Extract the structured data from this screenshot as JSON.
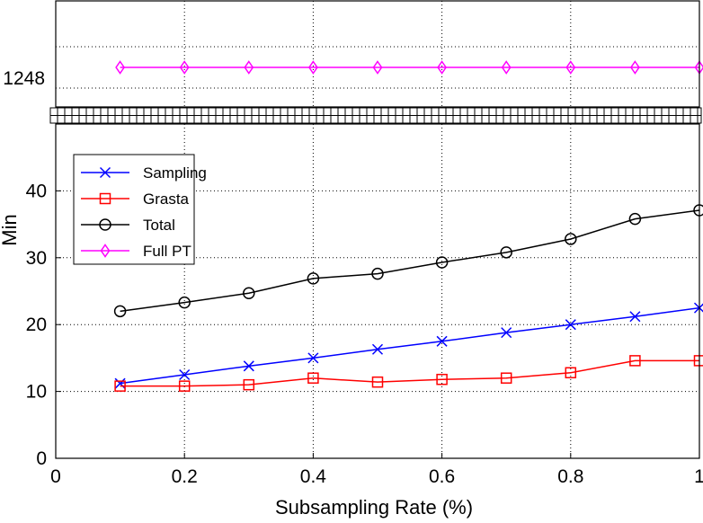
{
  "chart_data": {
    "type": "line",
    "xlabel": "Subsampling Rate (%)",
    "ylabel": "Min",
    "xlim": [
      0,
      1
    ],
    "ylim": [
      0,
      50
    ],
    "grid": true,
    "broken_axis": true,
    "break_band_label": "axis break",
    "x_ticks": [
      0,
      0.2,
      0.4,
      0.6,
      0.8,
      1
    ],
    "x_tick_labels": [
      "0",
      "0.2",
      "0.4",
      "0.6",
      "0.8",
      "1"
    ],
    "y_ticks": [
      0,
      10,
      20,
      30,
      40
    ],
    "y_tick_labels": [
      "0",
      "10",
      "20",
      "30",
      "40"
    ],
    "upper_panel": {
      "y_ticks": [
        1248
      ],
      "y_tick_labels": [
        "1248"
      ]
    },
    "x": [
      0.1,
      0.2,
      0.3,
      0.4,
      0.5,
      0.6,
      0.7,
      0.8,
      0.9,
      1.0
    ],
    "series": [
      {
        "name": "Sampling",
        "color": "#0000ff",
        "marker": "x",
        "panel": "lower",
        "values": [
          11.2,
          12.5,
          13.8,
          15.0,
          16.3,
          17.5,
          18.8,
          20.0,
          21.2,
          22.5
        ]
      },
      {
        "name": "Grasta",
        "color": "#ff0000",
        "marker": "square",
        "panel": "lower",
        "values": [
          10.8,
          10.8,
          11.0,
          12.0,
          11.4,
          11.8,
          12.0,
          12.8,
          14.6,
          14.6
        ]
      },
      {
        "name": "Total",
        "color": "#000000",
        "marker": "circle",
        "panel": "lower",
        "values": [
          22.0,
          23.3,
          24.7,
          26.9,
          27.6,
          29.3,
          30.8,
          32.8,
          35.8,
          37.1
        ]
      },
      {
        "name": "Full PT",
        "color": "#ff00ff",
        "marker": "diamond",
        "panel": "upper",
        "values": [
          1248,
          1248,
          1248,
          1248,
          1248,
          1248,
          1248,
          1248,
          1248,
          1248
        ]
      }
    ],
    "legend": {
      "position": "upper-left",
      "entries": [
        "Sampling",
        "Grasta",
        "Total",
        "Full PT"
      ]
    }
  }
}
